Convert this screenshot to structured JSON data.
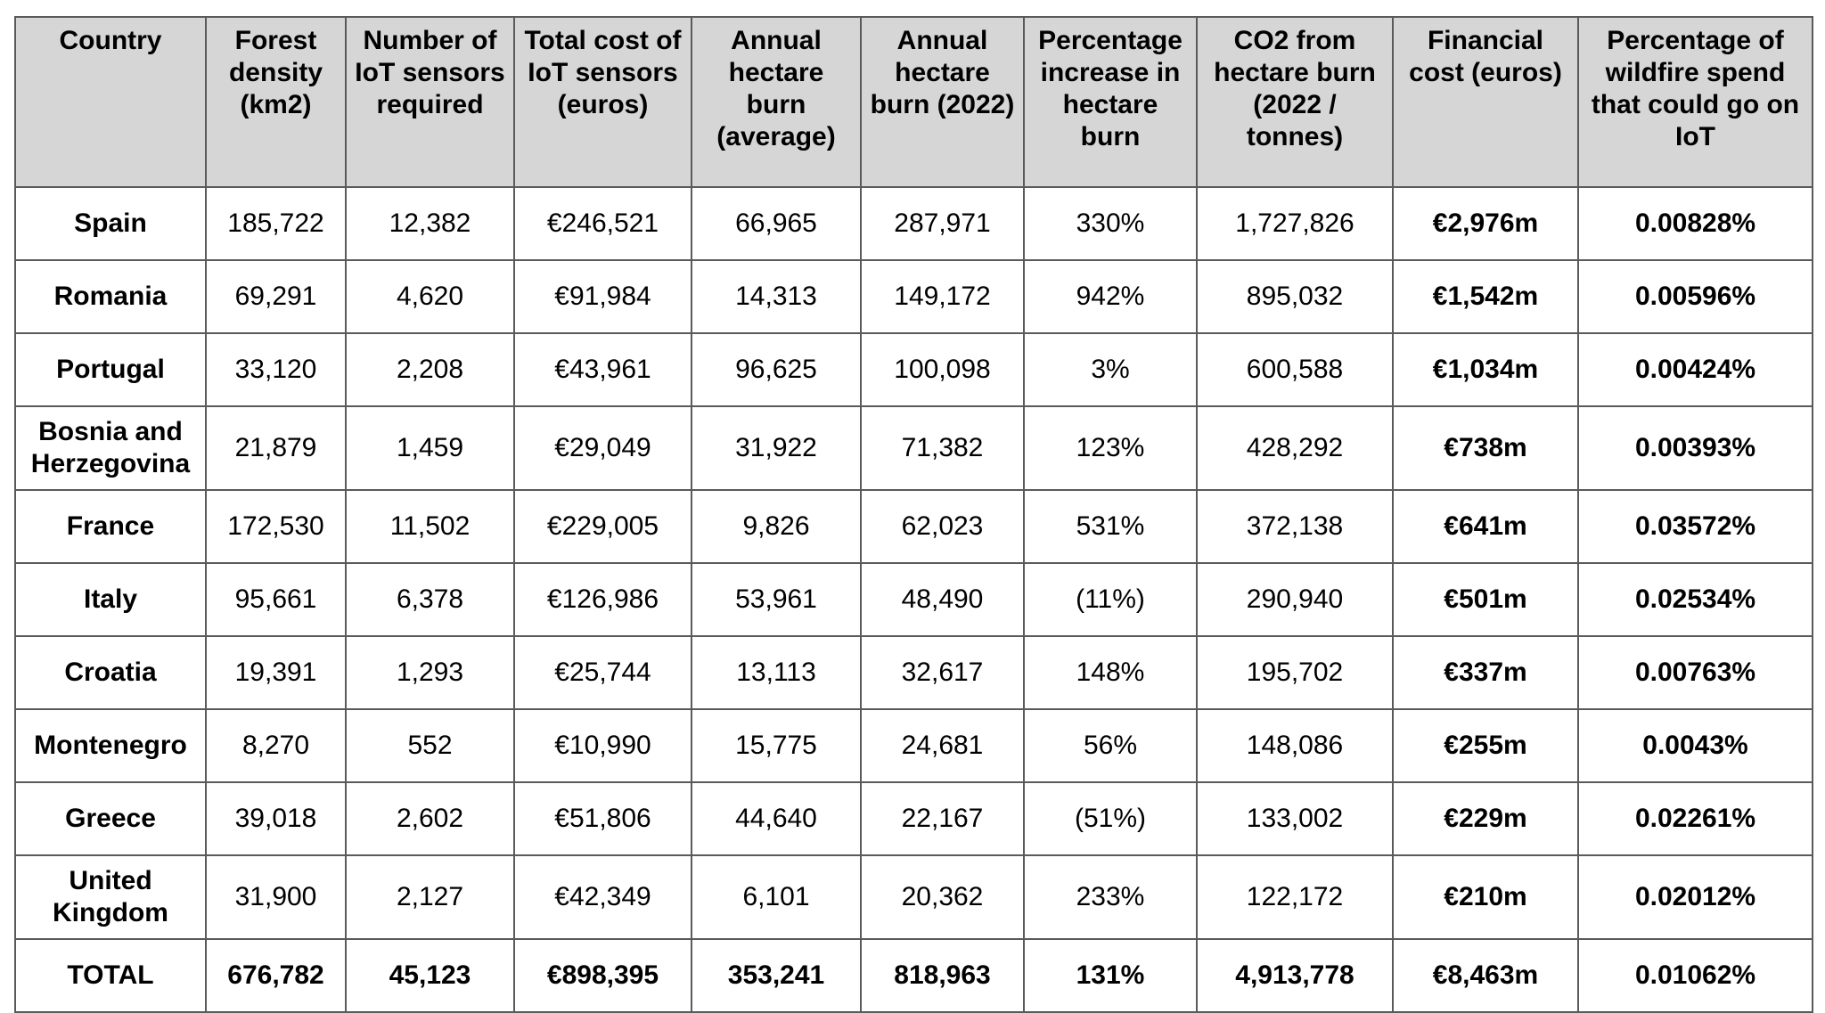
{
  "table": {
    "headers": [
      "Country",
      "Forest density (km2)",
      "Number of IoT sensors required",
      "Total cost of IoT sensors (euros)",
      "Annual hectare burn (average)",
      "Annual hectare burn (2022)",
      "Percentage increase in hectare burn",
      "CO2 from hectare burn (2022 / tonnes)",
      "Financial cost (euros)",
      "Percentage of wildfire spend that could go on IoT"
    ],
    "rows": [
      [
        "Spain",
        "185,722",
        "12,382",
        "€246,521",
        "66,965",
        "287,971",
        "330%",
        "1,727,826",
        "€2,976m",
        "0.00828%"
      ],
      [
        "Romania",
        "69,291",
        "4,620",
        "€91,984",
        "14,313",
        "149,172",
        "942%",
        "895,032",
        "€1,542m",
        "0.00596%"
      ],
      [
        "Portugal",
        "33,120",
        "2,208",
        "€43,961",
        "96,625",
        "100,098",
        "3%",
        "600,588",
        "€1,034m",
        "0.00424%"
      ],
      [
        "Bosnia and Herzegovina",
        "21,879",
        "1,459",
        "€29,049",
        "31,922",
        "71,382",
        "123%",
        "428,292",
        "€738m",
        "0.00393%"
      ],
      [
        "France",
        "172,530",
        "11,502",
        "€229,005",
        "9,826",
        "62,023",
        "531%",
        "372,138",
        "€641m",
        "0.03572%"
      ],
      [
        "Italy",
        "95,661",
        "6,378",
        "€126,986",
        "53,961",
        "48,490",
        "(11%)",
        "290,940",
        "€501m",
        "0.02534%"
      ],
      [
        "Croatia",
        "19,391",
        "1,293",
        "€25,744",
        "13,113",
        "32,617",
        "148%",
        "195,702",
        "€337m",
        "0.00763%"
      ],
      [
        "Montenegro",
        "8,270",
        "552",
        "€10,990",
        "15,775",
        "24,681",
        "56%",
        "148,086",
        "€255m",
        "0.0043%"
      ],
      [
        "Greece",
        "39,018",
        "2,602",
        "€51,806",
        "44,640",
        "22,167",
        "(51%)",
        "133,002",
        "€229m",
        "0.02261%"
      ],
      [
        "United Kingdom",
        "31,900",
        "2,127",
        "€42,349",
        "6,101",
        "20,362",
        "233%",
        "122,172",
        "€210m",
        "0.02012%"
      ]
    ],
    "total": [
      "TOTAL",
      "676,782",
      "45,123",
      "€898,395",
      "353,241",
      "818,963",
      "131%",
      "4,913,778",
      "€8,463m",
      "0.01062%"
    ]
  }
}
